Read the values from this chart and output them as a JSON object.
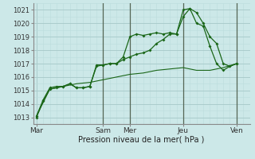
{
  "title": "Pression niveau de la mer( hPa )",
  "bg_color": "#cce8e8",
  "grid_major_color": "#aacccc",
  "grid_minor_color": "#bbdddd",
  "line_color": "#1a6618",
  "ylim": [
    1012.5,
    1021.5
  ],
  "yticks": [
    1013,
    1014,
    1015,
    1016,
    1017,
    1018,
    1019,
    1020,
    1021
  ],
  "day_labels": [
    "Mar",
    "Sam",
    "Mer",
    "Jeu",
    "Ven"
  ],
  "day_positions": [
    0,
    60,
    84,
    132,
    180
  ],
  "vline_positions": [
    60,
    84,
    132,
    180
  ],
  "xlim": [
    -3,
    192
  ],
  "series1_x": [
    0,
    6,
    12,
    18,
    24,
    30,
    36,
    42,
    48,
    54,
    60,
    66,
    72,
    78,
    84,
    90,
    96,
    102,
    108,
    114,
    120,
    126,
    132,
    138,
    144,
    150,
    156,
    162,
    168,
    174,
    180
  ],
  "series1_y": [
    1013.0,
    1014.2,
    1015.1,
    1015.2,
    1015.3,
    1015.5,
    1015.2,
    1015.2,
    1015.3,
    1016.9,
    1016.9,
    1017.0,
    1017.0,
    1017.5,
    1019.0,
    1019.2,
    1019.1,
    1019.2,
    1019.3,
    1019.2,
    1019.3,
    1019.2,
    1020.5,
    1021.1,
    1020.8,
    1020.0,
    1019.0,
    1018.5,
    1017.0,
    1016.8,
    1017.0
  ],
  "series2_x": [
    0,
    6,
    12,
    18,
    24,
    30,
    36,
    42,
    48,
    54,
    60,
    66,
    72,
    78,
    84,
    90,
    96,
    102,
    108,
    114,
    120,
    126,
    132,
    138,
    144,
    150,
    156,
    162,
    168,
    174,
    180
  ],
  "series2_y": [
    1013.1,
    1014.3,
    1015.2,
    1015.3,
    1015.3,
    1015.5,
    1015.2,
    1015.2,
    1015.3,
    1016.8,
    1016.9,
    1017.0,
    1017.0,
    1017.3,
    1017.5,
    1017.7,
    1017.8,
    1018.0,
    1018.5,
    1018.8,
    1019.2,
    1019.2,
    1021.0,
    1021.1,
    1020.0,
    1019.8,
    1018.3,
    1017.0,
    1016.5,
    1016.8,
    1017.0
  ],
  "series3_x": [
    0,
    12,
    24,
    36,
    48,
    60,
    72,
    84,
    96,
    108,
    120,
    132,
    144,
    156,
    168,
    180
  ],
  "series3_y": [
    1013.1,
    1015.1,
    1015.3,
    1015.5,
    1015.6,
    1015.8,
    1016.0,
    1016.2,
    1016.3,
    1016.5,
    1016.6,
    1016.7,
    1016.5,
    1016.5,
    1016.7,
    1017.0
  ]
}
